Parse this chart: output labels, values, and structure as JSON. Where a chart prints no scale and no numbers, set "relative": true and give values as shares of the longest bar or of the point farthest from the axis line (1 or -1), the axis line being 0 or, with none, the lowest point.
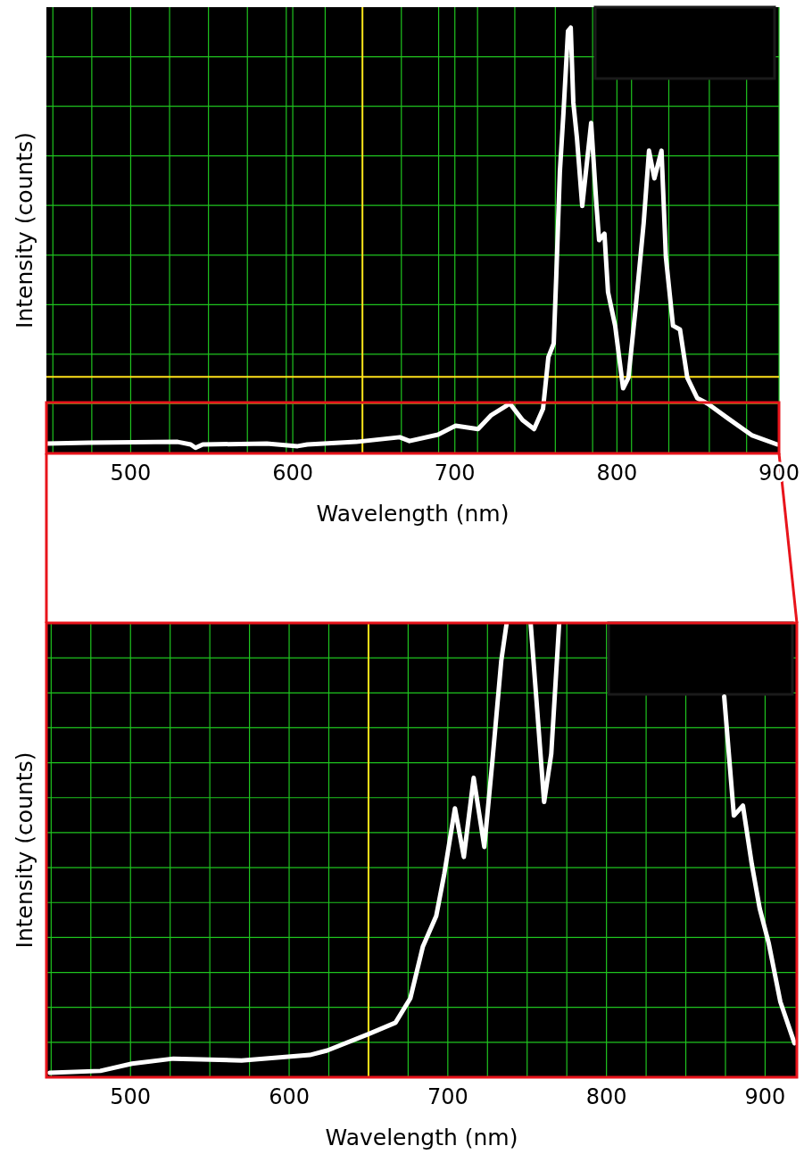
{
  "chart_data": [
    {
      "type": "line",
      "xlabel": "Wavelength (nm)",
      "ylabel": "Intensity (counts)",
      "relative": true,
      "grid": true,
      "tick_labels": "x",
      "xlim": [
        448,
        900
      ],
      "xticks": [
        {
          "value": 452,
          "label": null
        },
        {
          "value": 476,
          "label": null
        },
        500,
        {
          "value": 524,
          "label": null
        },
        {
          "value": 548,
          "label": null
        },
        {
          "value": 572,
          "label": null
        },
        {
          "value": 596,
          "label": null
        },
        600,
        {
          "value": 620,
          "label": null
        },
        {
          "value": 643,
          "label": null
        },
        {
          "value": 667,
          "label": null
        },
        {
          "value": 690,
          "label": null
        },
        700,
        {
          "value": 714,
          "label": null
        },
        {
          "value": 737,
          "label": null
        },
        {
          "value": 762,
          "label": null
        },
        {
          "value": 785,
          "label": null
        },
        800,
        {
          "value": 809,
          "label": null
        },
        {
          "value": 832,
          "label": null
        },
        {
          "value": 857,
          "label": null
        },
        {
          "value": 880,
          "label": null
        },
        900
      ],
      "ref_lines": [
        {
          "axis": "x",
          "value": 643,
          "color": "#ffe11a"
        },
        {
          "axis": "y",
          "value": 0.18,
          "color": "#ffe11a"
        }
      ],
      "series": [
        {
          "color": "#ffffff",
          "x": [
            448,
            474,
            529,
            537,
            540,
            544.5,
            584,
            603,
            609,
            639,
            666,
            672,
            689.6,
            700.5,
            714.3,
            722.5,
            734,
            741.8,
            748.9,
            754.4,
            757.7,
            761,
            762.6,
            764.8,
            767,
            769.8,
            771.5,
            773.1,
            775.3,
            778.6,
            784.1,
            787.4,
            789,
            792.3,
            794.5,
            798.9,
            803.8,
            807.1,
            811.5,
            816.5,
            819.8,
            823.1,
            827.5,
            830.2,
            834.6,
            838.9,
            843.4,
            849.5,
            856,
            868.6,
            883.5,
            898.9
          ],
          "values": [
            0.023,
            0.025,
            0.027,
            0.021,
            0.013,
            0.021,
            0.023,
            0.017,
            0.021,
            0.027,
            0.038,
            0.029,
            0.044,
            0.065,
            0.057,
            0.09,
            0.117,
            0.078,
            0.057,
            0.105,
            0.226,
            0.258,
            0.419,
            0.662,
            0.799,
            0.992,
            1,
            0.824,
            0.742,
            0.581,
            0.776,
            0.581,
            0.501,
            0.516,
            0.379,
            0.3,
            0.153,
            0.178,
            0.34,
            0.541,
            0.711,
            0.646,
            0.711,
            0.461,
            0.3,
            0.291,
            0.178,
            0.13,
            0.117,
            0.082,
            0.042,
            0.021
          ]
        }
      ]
    },
    {
      "type": "line",
      "xlabel": "Wavelength (nm)",
      "ylabel": "Intensity (counts)",
      "relative": true,
      "grid": true,
      "tick_labels": "x",
      "xlim": [
        447,
        920
      ],
      "xticks": [
        {
          "value": 450,
          "label": null
        },
        {
          "value": 475,
          "label": null
        },
        500,
        {
          "value": 525,
          "label": null
        },
        {
          "value": 550,
          "label": null
        },
        {
          "value": 575,
          "label": null
        },
        600,
        {
          "value": 625,
          "label": null
        },
        {
          "value": 650,
          "label": null
        },
        {
          "value": 675,
          "label": null
        },
        700,
        {
          "value": 725,
          "label": null
        },
        {
          "value": 750,
          "label": null
        },
        {
          "value": 775,
          "label": null
        },
        800,
        {
          "value": 825,
          "label": null
        },
        {
          "value": 850,
          "label": null
        },
        {
          "value": 875,
          "label": null
        },
        900
      ],
      "ref_lines": [
        {
          "axis": "x",
          "value": 650,
          "color": "#ffe11a"
        }
      ],
      "series": [
        {
          "color": "#ffffff",
          "x": [
            449,
            481,
            501,
            527,
            570,
            613,
            624,
            650,
            667,
            676.4,
            684.3,
            692.7,
            697.8,
            704.5,
            710.1,
            716.3,
            723,
            728.1,
            733.7,
            737.1,
            745,
            752.2,
            760.7,
            765.2,
            770.2,
            800,
            874.2,
            880.3,
            886,
            891.6,
            896.6,
            902.2,
            909.6,
            918.5
          ],
          "values": [
            0.01,
            0.014,
            0.03,
            0.041,
            0.037,
            0.049,
            0.059,
            0.095,
            0.12,
            0.174,
            0.288,
            0.355,
            0.448,
            0.592,
            0.485,
            0.659,
            0.507,
            0.696,
            0.917,
            1,
            null,
            1,
            0.606,
            0.712,
            1,
            null,
            0.838,
            0.576,
            0.598,
            0.469,
            0.371,
            0.296,
            0.166,
            0.075
          ]
        }
      ]
    }
  ]
}
